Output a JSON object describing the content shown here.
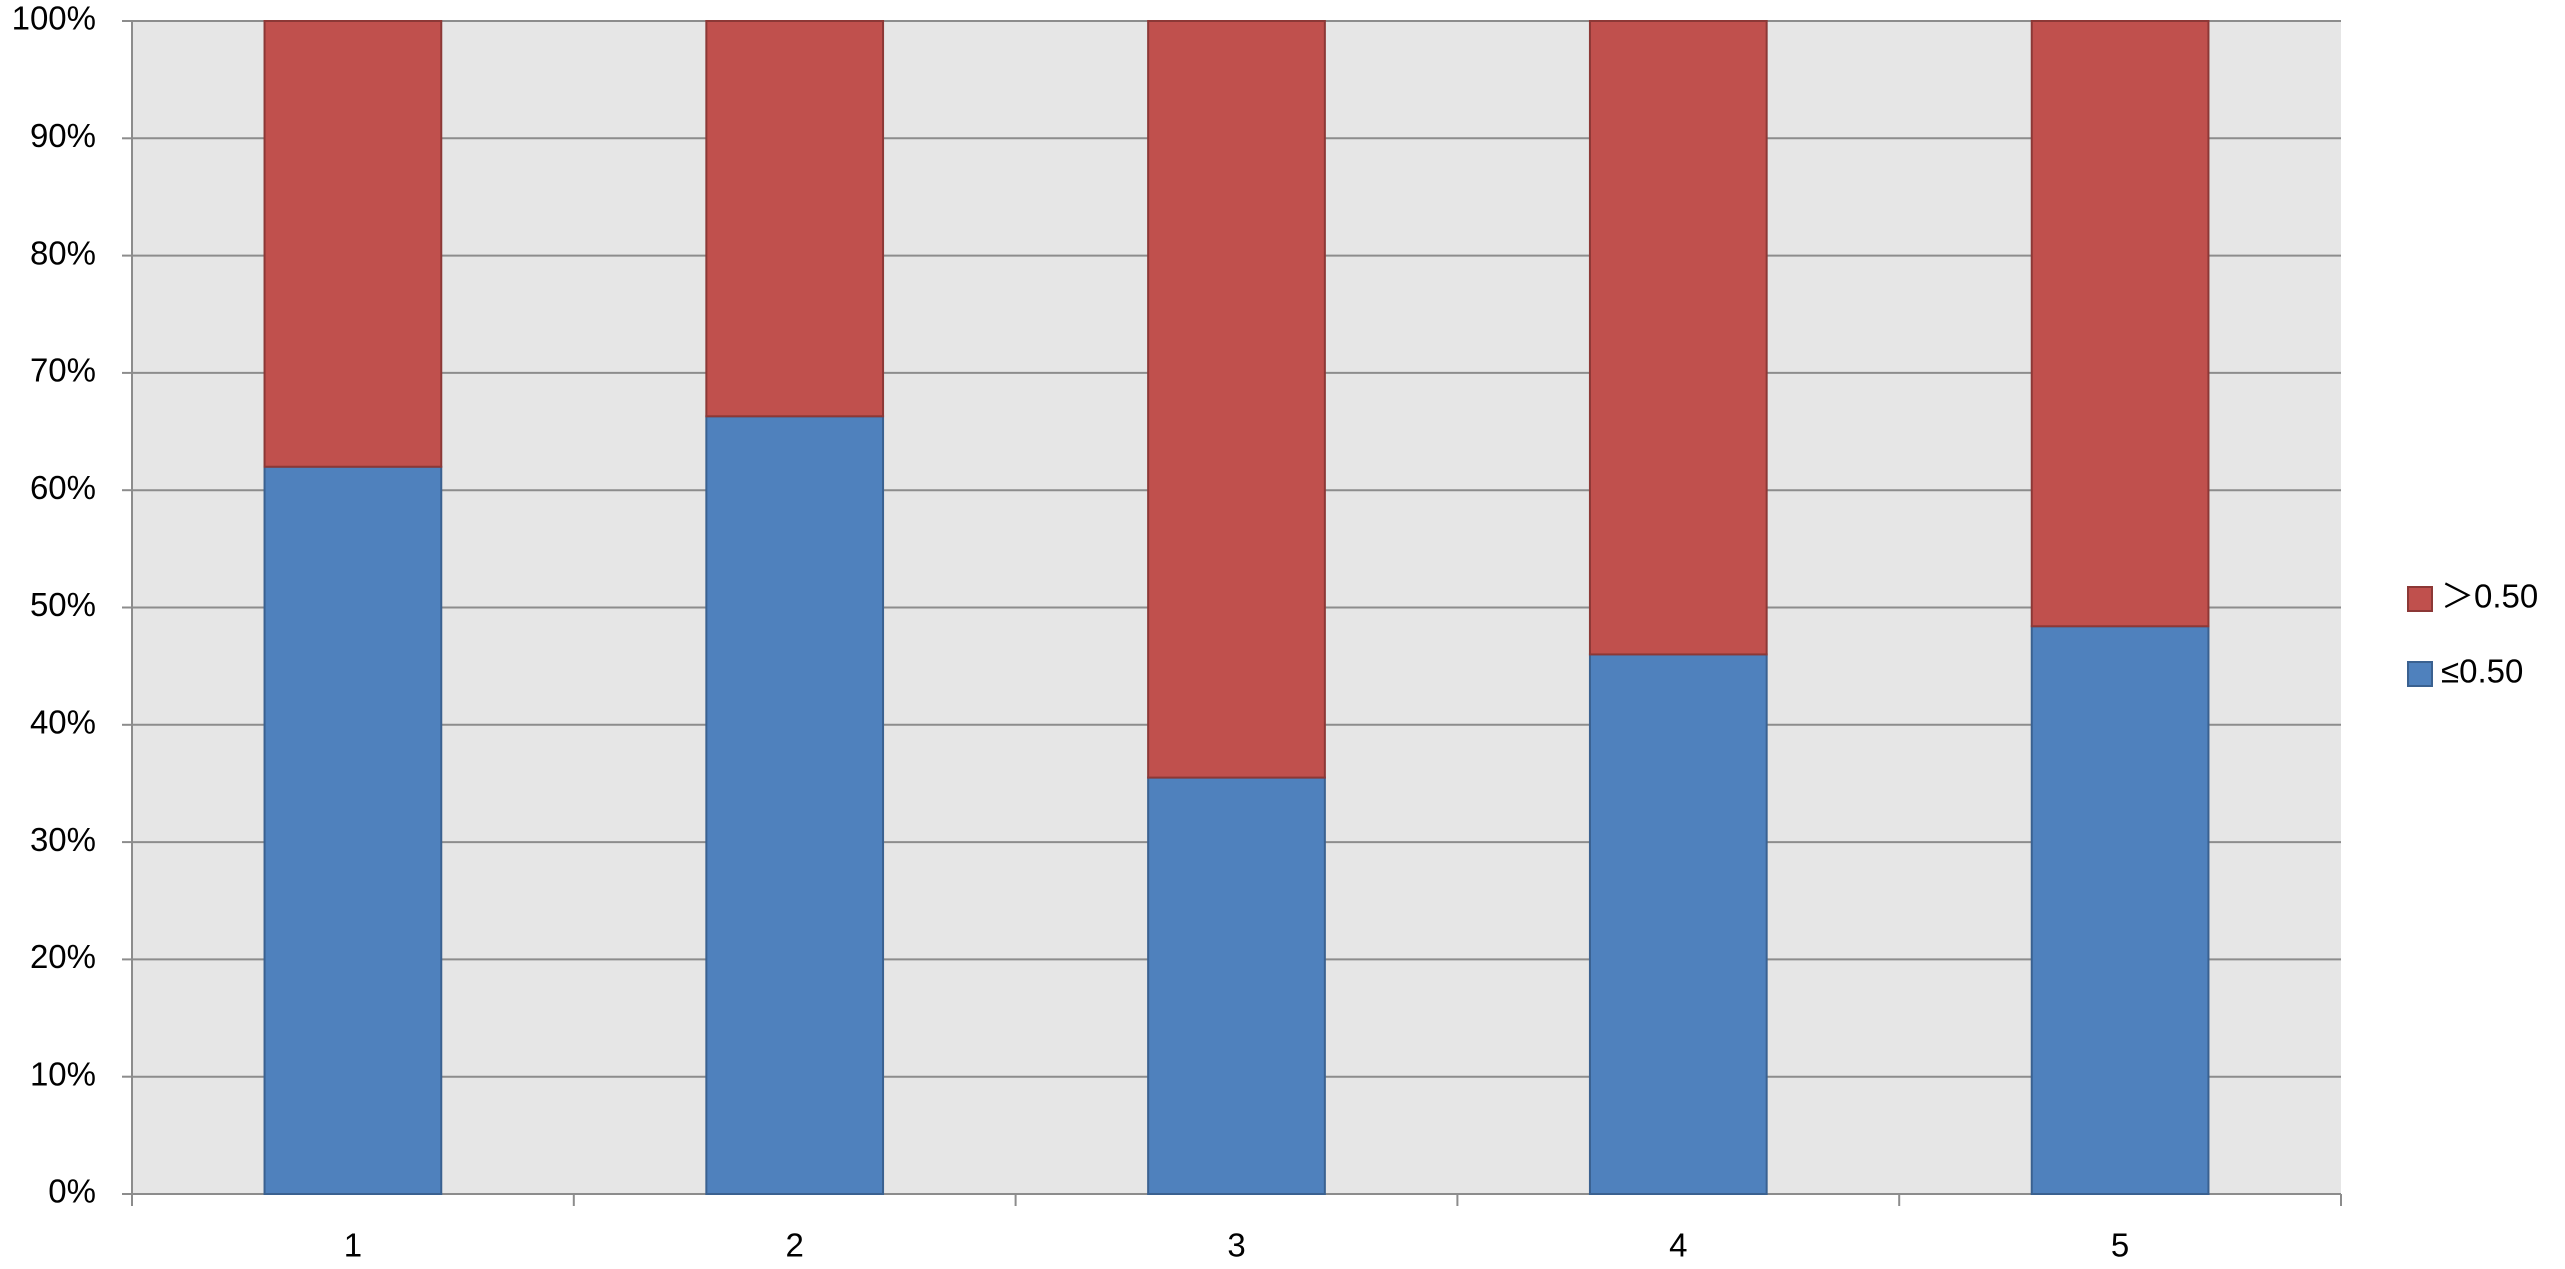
{
  "chart_data": {
    "type": "stacked_bar",
    "categories": [
      "1",
      "2",
      "3",
      "4",
      "5"
    ],
    "series": [
      {
        "name": "≤0.50",
        "color": "#4f81bd",
        "values": [
          62,
          66.3,
          35.5,
          46,
          48.4
        ]
      },
      {
        "name": "＞0.50",
        "color": "#c0504d",
        "values": [
          38,
          33.7,
          64.5,
          54,
          51.6
        ]
      }
    ],
    "ylim": [
      0,
      100
    ],
    "yticks": [
      {
        "value": 0,
        "label": "0%"
      },
      {
        "value": 10,
        "label": "10%"
      },
      {
        "value": 20,
        "label": "20%"
      },
      {
        "value": 30,
        "label": "30%"
      },
      {
        "value": 40,
        "label": "40%"
      },
      {
        "value": 50,
        "label": "50%"
      },
      {
        "value": 60,
        "label": "60%"
      },
      {
        "value": 70,
        "label": "70%"
      },
      {
        "value": 80,
        "label": "80%"
      },
      {
        "value": 90,
        "label": "90%"
      },
      {
        "value": 100,
        "label": "100%"
      }
    ],
    "grid": true,
    "legend": "right"
  }
}
